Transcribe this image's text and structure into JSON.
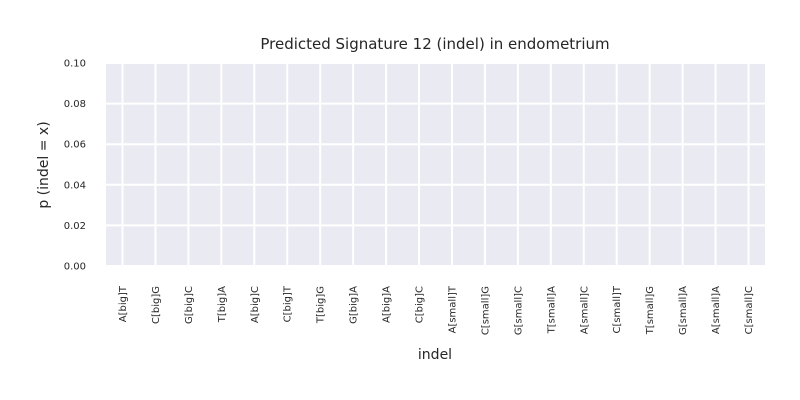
{
  "chart_data": {
    "type": "bar",
    "title": "Predicted Signature 12 (indel) in endometrium",
    "xlabel": "indel",
    "ylabel": "p (indel = x)",
    "categories": [
      "A[big]T",
      "C[big]G",
      "G[big]C",
      "T[big]A",
      "A[big]C",
      "C[big]T",
      "T[big]G",
      "G[big]A",
      "A[big]A",
      "C[big]C",
      "A[small]T",
      "C[small]G",
      "G[small]C",
      "T[small]A",
      "A[small]C",
      "C[small]T",
      "T[small]G",
      "G[small]A",
      "A[small]A",
      "C[small]C"
    ],
    "values": [
      0,
      0,
      0,
      0,
      0,
      0,
      0,
      0,
      0,
      0,
      0,
      0,
      0,
      0,
      0,
      0,
      0,
      0,
      0,
      0
    ],
    "ylim": [
      0,
      0.1
    ],
    "yticks": [
      "0.00",
      "0.02",
      "0.04",
      "0.06",
      "0.08",
      "0.10"
    ],
    "grid": true,
    "colors": {
      "background": "#eaeaf2",
      "grid": "#ffffff",
      "text": "#262626",
      "bar": "#4c72b0"
    }
  }
}
